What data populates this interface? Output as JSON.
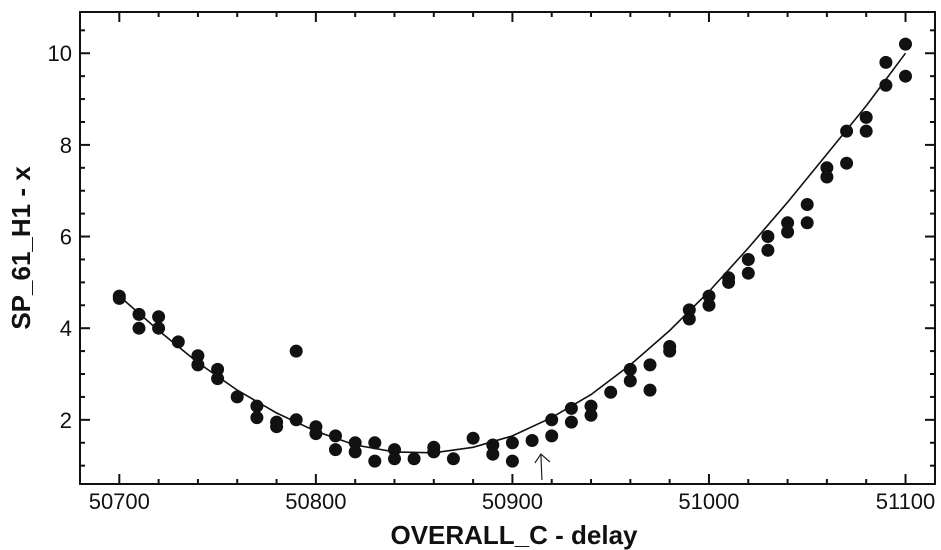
{
  "chart_data": {
    "type": "scatter",
    "title": "",
    "xlabel": "OVERALL_C - delay",
    "ylabel": "SP_61_H1 - x",
    "xlim": [
      50680,
      51115
    ],
    "ylim": [
      0.6,
      10.9
    ],
    "x_ticks": [
      50700,
      50800,
      50900,
      51000,
      51100
    ],
    "y_ticks": [
      2,
      4,
      6,
      8,
      10
    ],
    "grid": false,
    "legend": "none",
    "annotation": "arrow pointing up near x = 50915",
    "series": [
      {
        "marker": "filled circle",
        "points": [
          [
            50700,
            4.7
          ],
          [
            50700,
            4.65
          ],
          [
            50710,
            4.3
          ],
          [
            50710,
            4.0
          ],
          [
            50720,
            4.25
          ],
          [
            50720,
            4.0
          ],
          [
            50730,
            3.7
          ],
          [
            50740,
            3.4
          ],
          [
            50740,
            3.2
          ],
          [
            50750,
            3.1
          ],
          [
            50750,
            2.9
          ],
          [
            50760,
            2.5
          ],
          [
            50770,
            2.3
          ],
          [
            50770,
            2.05
          ],
          [
            50780,
            1.95
          ],
          [
            50780,
            1.85
          ],
          [
            50790,
            3.5
          ],
          [
            50790,
            2.0
          ],
          [
            50800,
            1.85
          ],
          [
            50800,
            1.7
          ],
          [
            50810,
            1.65
          ],
          [
            50810,
            1.35
          ],
          [
            50820,
            1.5
          ],
          [
            50820,
            1.3
          ],
          [
            50830,
            1.5
          ],
          [
            50830,
            1.1
          ],
          [
            50840,
            1.35
          ],
          [
            50840,
            1.15
          ],
          [
            50850,
            1.15
          ],
          [
            50860,
            1.4
          ],
          [
            50860,
            1.3
          ],
          [
            50870,
            1.15
          ],
          [
            50880,
            1.6
          ],
          [
            50890,
            1.45
          ],
          [
            50890,
            1.25
          ],
          [
            50900,
            1.5
          ],
          [
            50900,
            1.1
          ],
          [
            50910,
            1.55
          ],
          [
            50920,
            2.0
          ],
          [
            50920,
            1.65
          ],
          [
            50930,
            2.25
          ],
          [
            50930,
            1.95
          ],
          [
            50940,
            2.3
          ],
          [
            50940,
            2.1
          ],
          [
            50950,
            2.6
          ],
          [
            50960,
            3.1
          ],
          [
            50960,
            2.85
          ],
          [
            50970,
            3.2
          ],
          [
            50970,
            2.65
          ],
          [
            50980,
            3.6
          ],
          [
            50980,
            3.5
          ],
          [
            50990,
            4.4
          ],
          [
            50990,
            4.2
          ],
          [
            51000,
            4.7
          ],
          [
            51000,
            4.5
          ],
          [
            51010,
            5.1
          ],
          [
            51010,
            5.0
          ],
          [
            51020,
            5.5
          ],
          [
            51020,
            5.2
          ],
          [
            51030,
            6.0
          ],
          [
            51030,
            5.7
          ],
          [
            51040,
            6.3
          ],
          [
            51040,
            6.1
          ],
          [
            51050,
            6.7
          ],
          [
            51050,
            6.3
          ],
          [
            51060,
            7.5
          ],
          [
            51060,
            7.3
          ],
          [
            51070,
            8.3
          ],
          [
            51070,
            7.6
          ],
          [
            51080,
            8.6
          ],
          [
            51080,
            8.3
          ],
          [
            51090,
            9.8
          ],
          [
            51090,
            9.3
          ],
          [
            51100,
            10.2
          ],
          [
            51100,
            9.5
          ]
        ]
      }
    ],
    "fit_curve": {
      "x": [
        50700,
        50720,
        50740,
        50760,
        50780,
        50800,
        50820,
        50840,
        50860,
        50880,
        50900,
        50920,
        50940,
        50960,
        50980,
        51000,
        51020,
        51040,
        51060,
        51080,
        51100
      ],
      "y": [
        4.7,
        3.95,
        3.25,
        2.65,
        2.15,
        1.75,
        1.45,
        1.3,
        1.28,
        1.4,
        1.65,
        2.05,
        2.55,
        3.2,
        3.95,
        4.8,
        5.75,
        6.75,
        7.8,
        8.85,
        10.0
      ]
    }
  }
}
